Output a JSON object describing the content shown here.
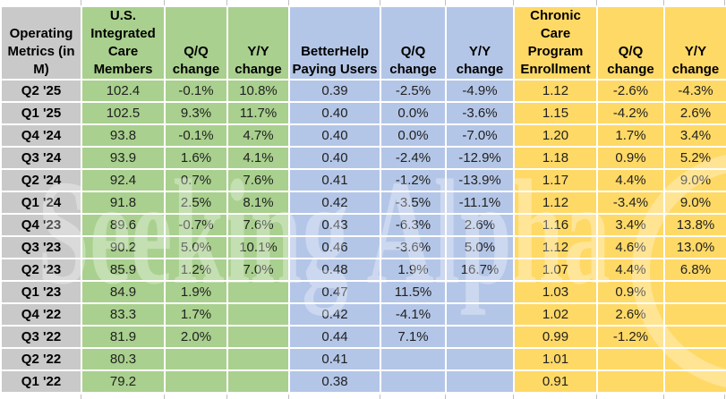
{
  "colors": {
    "gray": "#C9C9C9",
    "green": "#A9D08E",
    "blue": "#B4C6E7",
    "yellow": "#FFD966",
    "gridline": "#FFFFFF",
    "text": "#212121"
  },
  "watermark": {
    "text": "Seeking Alpha"
  },
  "chart_data": {
    "type": "table",
    "title": "Operating Metrics (in M)",
    "corner_header": "Operating Metrics (in M)",
    "column_groups": [
      {
        "label": "U.S. Integrated Care Members",
        "color": "#A9D08E"
      },
      {
        "label": "BetterHelp Paying Users",
        "color": "#B4C6E7"
      },
      {
        "label": "Chronic Care Program Enrollment",
        "color": "#FFD966"
      }
    ],
    "column_headers": [
      "U.S. Integrated Care Members",
      "Q/Q change",
      "Y/Y change",
      "BetterHelp Paying Users",
      "Q/Q change",
      "Y/Y change",
      "Chronic Care Program Enrollment",
      "Q/Q change",
      "Y/Y change"
    ],
    "rows": [
      {
        "label": "Q2 '25",
        "cells": [
          "102.4",
          "-0.1%",
          "10.8%",
          "0.39",
          "-2.5%",
          "-4.9%",
          "1.12",
          "-2.6%",
          "-4.3%"
        ]
      },
      {
        "label": "Q1 '25",
        "cells": [
          "102.5",
          "9.3%",
          "11.7%",
          "0.40",
          "0.0%",
          "-3.6%",
          "1.15",
          "-4.2%",
          "2.6%"
        ]
      },
      {
        "label": "Q4 '24",
        "cells": [
          "93.8",
          "-0.1%",
          "4.7%",
          "0.40",
          "0.0%",
          "-7.0%",
          "1.20",
          "1.7%",
          "3.4%"
        ]
      },
      {
        "label": "Q3 '24",
        "cells": [
          "93.9",
          "1.6%",
          "4.1%",
          "0.40",
          "-2.4%",
          "-12.9%",
          "1.18",
          "0.9%",
          "5.2%"
        ]
      },
      {
        "label": "Q2 '24",
        "cells": [
          "92.4",
          "0.7%",
          "7.6%",
          "0.41",
          "-1.2%",
          "-13.9%",
          "1.17",
          "4.4%",
          "9.0%"
        ]
      },
      {
        "label": "Q1 '24",
        "cells": [
          "91.8",
          "2.5%",
          "8.1%",
          "0.42",
          "-3.5%",
          "-11.1%",
          "1.12",
          "-3.4%",
          "9.0%"
        ]
      },
      {
        "label": "Q4 '23",
        "cells": [
          "89.6",
          "-0.7%",
          "7.6%",
          "0.43",
          "-6.3%",
          "2.6%",
          "1.16",
          "3.4%",
          "13.8%"
        ]
      },
      {
        "label": "Q3 '23",
        "cells": [
          "90.2",
          "5.0%",
          "10.1%",
          "0.46",
          "-3.6%",
          "5.0%",
          "1.12",
          "4.6%",
          "13.0%"
        ]
      },
      {
        "label": "Q2 '23",
        "cells": [
          "85.9",
          "1.2%",
          "7.0%",
          "0.48",
          "1.9%",
          "16.7%",
          "1.07",
          "4.4%",
          "6.8%"
        ]
      },
      {
        "label": "Q1 '23",
        "cells": [
          "84.9",
          "1.9%",
          "",
          "0.47",
          "11.5%",
          "",
          "1.03",
          "0.9%",
          ""
        ]
      },
      {
        "label": "Q4 '22",
        "cells": [
          "83.3",
          "1.7%",
          "",
          "0.42",
          "-4.1%",
          "",
          "1.02",
          "2.6%",
          ""
        ]
      },
      {
        "label": "Q3 '22",
        "cells": [
          "81.9",
          "2.0%",
          "",
          "0.44",
          "7.1%",
          "",
          "0.99",
          "-1.2%",
          ""
        ]
      },
      {
        "label": "Q2 '22",
        "cells": [
          "80.3",
          "",
          "",
          "0.41",
          "",
          "",
          "1.01",
          "",
          ""
        ]
      },
      {
        "label": "Q1 '22",
        "cells": [
          "79.2",
          "",
          "",
          "0.38",
          "",
          "",
          "0.91",
          "",
          ""
        ]
      }
    ]
  }
}
